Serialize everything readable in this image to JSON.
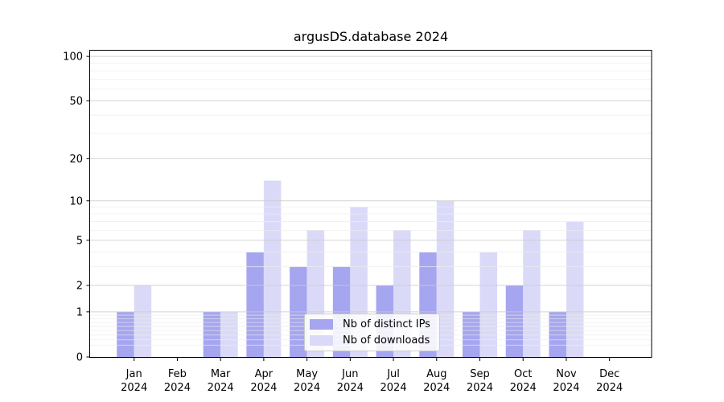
{
  "title": "argusDS.database 2024",
  "chart_data": {
    "type": "bar",
    "title": "argusDS.database 2024",
    "year": "2024",
    "months": [
      "Jan",
      "Feb",
      "Mar",
      "Apr",
      "May",
      "Jun",
      "Jul",
      "Aug",
      "Sep",
      "Oct",
      "Nov",
      "Dec"
    ],
    "categories": [
      "Jan 2024",
      "Feb 2024",
      "Mar 2024",
      "Apr 2024",
      "May 2024",
      "Jun 2024",
      "Jul 2024",
      "Aug 2024",
      "Sep 2024",
      "Oct 2024",
      "Nov 2024",
      "Dec 2024"
    ],
    "series": [
      {
        "name": "Nb of distinct IPs",
        "color": "#a5a5f0",
        "values": [
          1,
          0,
          1,
          4,
          3,
          3,
          2,
          4,
          1,
          2,
          1,
          0
        ]
      },
      {
        "name": "Nb of downloads",
        "color": "#dadaf8",
        "values": [
          2,
          0,
          1,
          14,
          6,
          9,
          6,
          10,
          4,
          6,
          7,
          0
        ]
      }
    ],
    "y_scale": "log10(value+1)",
    "y_ticks": [
      0,
      1,
      2,
      5,
      10,
      20,
      50,
      100
    ],
    "y_minor_ticks": [
      0.2,
      0.3,
      0.4,
      0.5,
      0.6,
      0.7,
      0.8,
      0.9,
      3,
      4,
      6,
      7,
      8,
      9,
      30,
      40,
      60,
      70,
      80,
      90
    ],
    "ylim": [
      0,
      110
    ],
    "grid": true,
    "legend_position": "inside-bottom-center",
    "colors": {
      "axis": "#000000",
      "major_grid": "#cdcdcd",
      "minor_grid": "#ececec",
      "tick_text": "#000000"
    }
  }
}
